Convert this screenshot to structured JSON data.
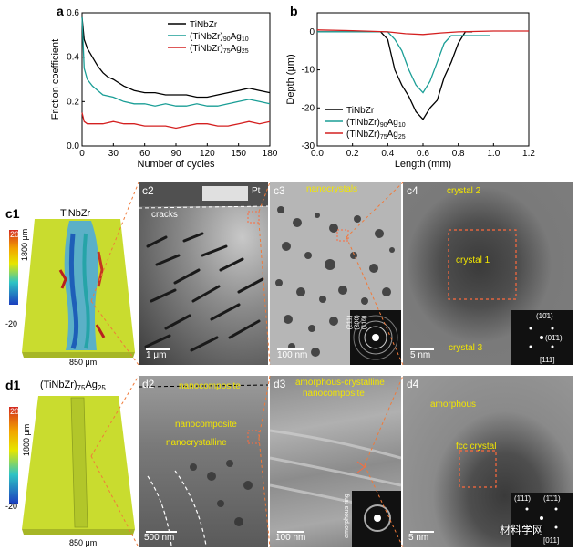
{
  "chart_data": [
    {
      "type": "line",
      "panel": "a",
      "xlabel": "Number of cycles",
      "ylabel": "Friction coefficient",
      "xlim": [
        0,
        180
      ],
      "ylim": [
        0.0,
        0.6
      ],
      "xticks": [
        "0",
        "30",
        "60",
        "90",
        "120",
        "150",
        "180"
      ],
      "yticks": [
        "0.0",
        "0.2",
        "0.4",
        "0.6"
      ],
      "legend_position": "top-right",
      "colors": [
        "#000000",
        "#1a9e96",
        "#d42020"
      ],
      "series": [
        {
          "name": "TiNbZr",
          "name_main": "TiNbZr",
          "name_sub1": "",
          "name_mid": "",
          "name_sub2": "",
          "x": [
            0,
            2,
            5,
            10,
            15,
            20,
            25,
            30,
            40,
            50,
            60,
            70,
            80,
            90,
            100,
            110,
            120,
            130,
            140,
            150,
            160,
            170,
            180
          ],
          "y": [
            0.58,
            0.48,
            0.44,
            0.4,
            0.36,
            0.33,
            0.31,
            0.3,
            0.27,
            0.25,
            0.24,
            0.24,
            0.23,
            0.23,
            0.23,
            0.22,
            0.22,
            0.23,
            0.24,
            0.25,
            0.26,
            0.25,
            0.24
          ]
        },
        {
          "name": "(TiNbZr)90Ag10",
          "name_main": "(TiNbZr)",
          "name_sub1": "90",
          "name_mid": "Ag",
          "name_sub2": "10",
          "x": [
            0,
            2,
            5,
            10,
            15,
            20,
            30,
            40,
            50,
            60,
            70,
            80,
            90,
            100,
            110,
            120,
            130,
            140,
            150,
            160,
            170,
            180
          ],
          "y": [
            0.58,
            0.35,
            0.3,
            0.27,
            0.25,
            0.23,
            0.22,
            0.2,
            0.19,
            0.19,
            0.18,
            0.19,
            0.18,
            0.18,
            0.19,
            0.18,
            0.18,
            0.19,
            0.2,
            0.21,
            0.2,
            0.19
          ]
        },
        {
          "name": "(TiNbZr)75Ag25",
          "name_main": "(TiNbZr)",
          "name_sub1": "75",
          "name_mid": "Ag",
          "name_sub2": "25",
          "x": [
            0,
            2,
            5,
            10,
            20,
            30,
            40,
            50,
            60,
            70,
            80,
            90,
            100,
            110,
            120,
            130,
            140,
            150,
            160,
            170,
            180
          ],
          "y": [
            0.15,
            0.11,
            0.1,
            0.1,
            0.1,
            0.11,
            0.1,
            0.1,
            0.09,
            0.09,
            0.09,
            0.08,
            0.09,
            0.1,
            0.1,
            0.09,
            0.09,
            0.1,
            0.11,
            0.1,
            0.11
          ]
        }
      ]
    },
    {
      "type": "line",
      "panel": "b",
      "xlabel": "Length (mm)",
      "ylabel": "Depth (μm)",
      "xlim": [
        0.0,
        1.2
      ],
      "ylim": [
        -30,
        5
      ],
      "xticks": [
        "0.0",
        "0.2",
        "0.4",
        "0.6",
        "0.8",
        "1.0",
        "1.2"
      ],
      "yticks": [
        "0",
        "-10",
        "-20",
        "-30"
      ],
      "legend_position": "bottom-left",
      "colors": [
        "#000000",
        "#1a9e96",
        "#d42020"
      ],
      "series": [
        {
          "name": "TiNbZr",
          "name_main": "TiNbZr",
          "name_sub1": "",
          "name_mid": "",
          "name_sub2": "",
          "x": [
            0.0,
            0.36,
            0.4,
            0.44,
            0.48,
            0.52,
            0.56,
            0.6,
            0.64,
            0.68,
            0.72,
            0.76,
            0.8,
            0.84,
            0.88
          ],
          "y": [
            0,
            0,
            -2,
            -10,
            -14,
            -17,
            -21,
            -23,
            -20,
            -18,
            -12,
            -8,
            -3,
            0,
            0
          ]
        },
        {
          "name": "(TiNbZr)90Ag10",
          "name_main": "(TiNbZr)",
          "name_sub1": "90",
          "name_mid": "Ag",
          "name_sub2": "10",
          "x": [
            0.0,
            0.4,
            0.44,
            0.48,
            0.52,
            0.56,
            0.6,
            0.64,
            0.68,
            0.72,
            0.76,
            0.8,
            0.88,
            0.98
          ],
          "y": [
            0,
            0,
            -2,
            -5,
            -10,
            -14,
            -16,
            -13,
            -8,
            -3,
            -1,
            -1,
            -1,
            -1
          ]
        },
        {
          "name": "(TiNbZr)75Ag25",
          "name_main": "(TiNbZr)",
          "name_sub1": "75",
          "name_mid": "Ag",
          "name_sub2": "25",
          "x": [
            0.0,
            0.2,
            0.4,
            0.5,
            0.6,
            0.7,
            0.8,
            1.0,
            1.2
          ],
          "y": [
            0.5,
            0.3,
            0,
            -0.5,
            -0.7,
            -0.3,
            0,
            0.2,
            0.2
          ]
        }
      ]
    }
  ],
  "labels": {
    "c1": "c1",
    "c2": "c2",
    "c3": "c3",
    "c4": "c4",
    "d1": "d1",
    "d2": "d2",
    "d3": "d3",
    "d4": "d4",
    "a": "a",
    "b": "b"
  },
  "c1": {
    "title": "TiNbZr",
    "colorbar_top": "20",
    "colorbar_bottom": "-20",
    "length": "1800 μm",
    "width": "850 μm"
  },
  "d1": {
    "title_main": "(TiNbZr)",
    "title_sub": "75",
    "title_tail": "Ag",
    "title_sub2": "25",
    "colorbar_top": "20",
    "colorbar_bottom": "-20",
    "length": "1800 μm",
    "width": "850 μm"
  },
  "c2": {
    "cracks": "cracks",
    "pt": "Pt",
    "scale": "1 μm"
  },
  "c3": {
    "nano": "nanocrystals",
    "scale": "100 nm",
    "rings": [
      "(110)",
      "(200)",
      "(211)"
    ]
  },
  "c4": {
    "crystal2": "crystal 2",
    "crystal1": "crystal 1",
    "crystal3": "crystal 3",
    "scale": "5 nm",
    "fft1": "(10̄1)",
    "fft2": "(01̄1)",
    "zone": "[111]"
  },
  "d2": {
    "nanocomposite_top": "nanocomposite",
    "nanocomposite": "nanocomposite",
    "nanocrystalline": "nanocrystalline",
    "scale": "500 nm"
  },
  "d3": {
    "line1": "amorphous-crystalline",
    "line2": "nanocomposite",
    "ring": "amorphous ring",
    "scale": "100 nm"
  },
  "d4": {
    "amorphous": "amorphous",
    "fcc": "fcc crystal",
    "scale": "5 nm",
    "fft1": "(1̄11̄)",
    "fft2": "(1̄1̄1)",
    "zone": "[011]"
  },
  "watermark": "材料学网"
}
